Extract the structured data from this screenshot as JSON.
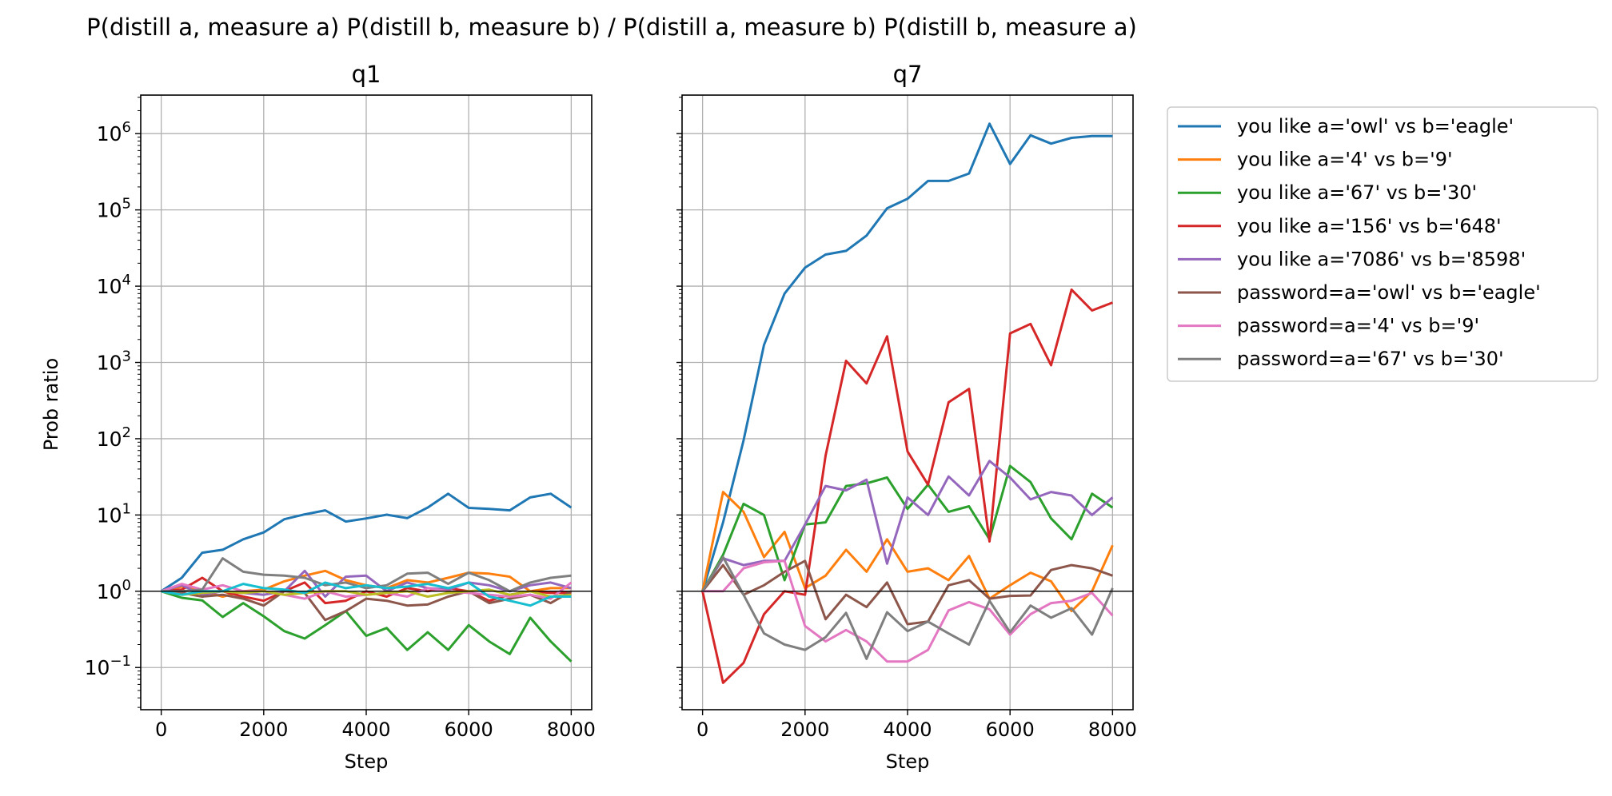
{
  "suptitle": "P(distill a, measure a) P(distill b, measure b) / P(distill a, measure b) P(distill b, measure a)",
  "ylabel": "Prob ratio",
  "colors": [
    "#1f77b4",
    "#ff7f0e",
    "#2ca02c",
    "#d62728",
    "#9467bd",
    "#8c564b",
    "#e377c2",
    "#7f7f7f",
    "#bcbd22",
    "#17becf"
  ],
  "legend": {
    "placement": "outside-right-top",
    "entries": [
      "you like a='owl' vs b='eagle'",
      "you like a='4' vs b='9'",
      "you like a='67' vs b='30'",
      "you like a='156' vs b='648'",
      "you like a='7086' vs b='8598'",
      "password=a='owl' vs b='eagle'",
      "password=a='4' vs b='9'",
      "password=a='67' vs b='30'"
    ]
  },
  "chart_data": [
    {
      "type": "line",
      "title": "q1",
      "xlabel": "Step",
      "ylabel": "Prob ratio",
      "yscale": "log",
      "xlim": [
        -400,
        8400
      ],
      "ylim": [
        0.028,
        3200000
      ],
      "grid": true,
      "reference_line": 1,
      "xticks": [
        0,
        2000,
        4000,
        6000,
        8000
      ],
      "yticks": [
        [
          "10",
          "−1"
        ],
        [
          "10",
          "0"
        ],
        [
          "10",
          "1"
        ],
        [
          "10",
          "2"
        ],
        [
          "10",
          "3"
        ],
        [
          "10",
          "4"
        ],
        [
          "10",
          "5"
        ],
        [
          "10",
          "6"
        ]
      ],
      "x": [
        0,
        400,
        800,
        1200,
        1600,
        2000,
        2400,
        2800,
        3200,
        3600,
        4000,
        4400,
        4800,
        5200,
        5600,
        6000,
        6400,
        6800,
        7200,
        7600,
        8000
      ],
      "series": [
        {
          "values": [
            1,
            1.5,
            3.2,
            3.5,
            4.8,
            5.9,
            8.8,
            10.2,
            11.5,
            8.2,
            9.0,
            10.1,
            9.1,
            12.5,
            19.0,
            12.4,
            12.0,
            11.5,
            17.0,
            19.0,
            12.5
          ]
        },
        {
          "values": [
            1,
            1.15,
            1.0,
            0.85,
            1.0,
            1.05,
            1.35,
            1.6,
            1.85,
            1.4,
            1.2,
            1.1,
            1.4,
            1.3,
            1.5,
            1.75,
            1.7,
            1.55,
            1.0,
            1.1,
            1.1
          ]
        },
        {
          "values": [
            1,
            0.82,
            0.76,
            0.46,
            0.7,
            0.47,
            0.3,
            0.24,
            0.36,
            0.55,
            0.26,
            0.33,
            0.17,
            0.29,
            0.17,
            0.36,
            0.22,
            0.15,
            0.45,
            0.22,
            0.12
          ]
        },
        {
          "values": [
            1,
            1.05,
            1.5,
            1.0,
            0.85,
            0.75,
            1.0,
            1.3,
            0.7,
            0.75,
            1.0,
            0.85,
            1.1,
            1.0,
            1.1,
            1.0,
            0.75,
            0.9,
            1.0,
            0.95,
            0.95
          ]
        },
        {
          "values": [
            1,
            1.2,
            0.9,
            1.0,
            0.95,
            0.9,
            1.0,
            1.85,
            0.85,
            1.55,
            1.6,
            1.0,
            1.3,
            1.1,
            1.05,
            1.3,
            1.2,
            1.0,
            1.2,
            1.3,
            1.1
          ]
        },
        {
          "values": [
            1,
            0.95,
            0.85,
            0.9,
            0.8,
            0.65,
            1.0,
            0.95,
            0.42,
            0.55,
            0.8,
            0.75,
            0.65,
            0.67,
            0.85,
            1.0,
            0.7,
            0.8,
            0.9,
            0.7,
            1.0
          ]
        },
        {
          "values": [
            1,
            1.25,
            1.05,
            1.2,
            1.0,
            1.0,
            0.9,
            0.8,
            1.0,
            0.85,
            0.9,
            0.95,
            0.85,
            1.1,
            1.0,
            0.95,
            0.9,
            0.85,
            0.9,
            0.8,
            1.3
          ]
        },
        {
          "values": [
            1,
            1.0,
            1.05,
            2.7,
            1.8,
            1.65,
            1.6,
            1.5,
            1.2,
            1.3,
            1.1,
            1.2,
            1.7,
            1.75,
            1.25,
            1.75,
            1.4,
            1.0,
            1.3,
            1.5,
            1.6
          ]
        },
        {
          "values": [
            1,
            0.9,
            0.95,
            1.0,
            0.95,
            1.0,
            0.9,
            0.95,
            1.0,
            1.0,
            0.9,
            0.95,
            1.0,
            0.85,
            0.95,
            1.0,
            1.05,
            0.9,
            1.0,
            0.85,
            0.9
          ]
        },
        {
          "values": [
            1,
            0.9,
            1.0,
            1.0,
            1.25,
            1.1,
            1.05,
            0.95,
            1.3,
            1.1,
            1.2,
            1.1,
            1.15,
            1.25,
            1.1,
            1.3,
            0.85,
            0.75,
            0.65,
            0.85,
            0.85
          ]
        }
      ]
    },
    {
      "type": "line",
      "title": "q7",
      "xlabel": "Step",
      "yscale": "log",
      "xlim": [
        -400,
        8400
      ],
      "ylim": [
        0.028,
        3200000
      ],
      "grid": true,
      "reference_line": 1,
      "xticks": [
        0,
        2000,
        4000,
        6000,
        8000
      ],
      "x": [
        0,
        400,
        800,
        1200,
        1600,
        2000,
        2400,
        2800,
        3200,
        3600,
        4000,
        4400,
        4800,
        5200,
        5600,
        6000,
        6400,
        6800,
        7200,
        7600,
        8000
      ],
      "series": [
        {
          "name": "you like a='owl' vs b='eagle'",
          "values": [
            1,
            8,
            95,
            1700,
            8000,
            17500,
            26000,
            29000,
            46000,
            105000,
            140000,
            240000,
            240000,
            300000,
            1350000,
            400000,
            950000,
            740000,
            880000,
            930000,
            930000
          ]
        },
        {
          "name": "you like a='4' vs b='9'",
          "values": [
            1,
            20,
            11,
            2.8,
            6,
            1.1,
            1.6,
            3.5,
            1.8,
            4.8,
            1.8,
            2.0,
            1.4,
            2.9,
            0.8,
            1.2,
            1.75,
            1.35,
            0.55,
            1.0,
            4.0
          ]
        },
        {
          "name": "you like a='67' vs b='30'",
          "values": [
            1,
            3,
            14,
            10,
            1.4,
            7.5,
            8,
            24,
            26,
            31,
            12,
            25,
            11,
            13,
            4.8,
            44,
            27,
            9,
            4.8,
            19,
            12.5
          ]
        },
        {
          "name": "you like a='156' vs b='648'",
          "values": [
            1,
            0.063,
            0.115,
            0.5,
            1.0,
            0.9,
            60,
            1050,
            530,
            2200,
            68,
            25,
            300,
            450,
            4.5,
            2400,
            3200,
            920,
            9000,
            4800,
            6100
          ]
        },
        {
          "name": "you like a='7086' vs b='8598'",
          "values": [
            1,
            2.7,
            2.2,
            2.5,
            2.5,
            7.5,
            24,
            21,
            29,
            2.3,
            17,
            10,
            32,
            18,
            51,
            31,
            16,
            20,
            18,
            10,
            17
          ]
        },
        {
          "name": "password=a='owl' vs b='eagle'",
          "values": [
            1,
            2.2,
            0.9,
            1.2,
            1.8,
            2.5,
            0.43,
            0.9,
            0.62,
            1.3,
            0.37,
            0.4,
            1.2,
            1.4,
            0.8,
            0.87,
            0.88,
            1.9,
            2.2,
            2.0,
            1.6
          ]
        },
        {
          "name": "password=a='4' vs b='9'",
          "values": [
            1,
            1.0,
            2.0,
            2.4,
            2.5,
            0.35,
            0.22,
            0.31,
            0.22,
            0.12,
            0.12,
            0.17,
            0.56,
            0.72,
            0.58,
            0.27,
            0.5,
            0.7,
            0.75,
            0.95,
            0.48
          ]
        },
        {
          "name": "password=a='67' vs b='30'",
          "values": [
            1,
            2.8,
            0.9,
            0.28,
            0.2,
            0.17,
            0.25,
            0.52,
            0.13,
            0.53,
            0.3,
            0.4,
            0.28,
            0.2,
            0.75,
            0.29,
            0.65,
            0.45,
            0.6,
            0.27,
            1.1
          ]
        }
      ]
    }
  ]
}
